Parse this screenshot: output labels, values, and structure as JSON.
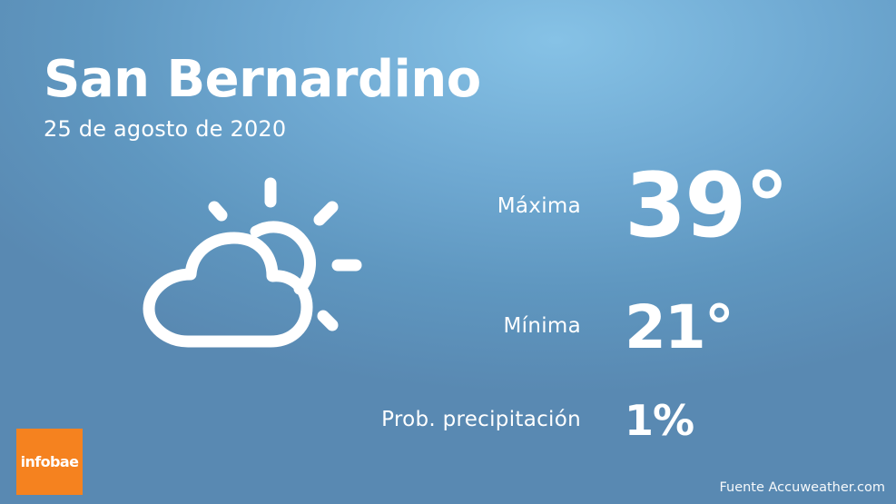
{
  "location": {
    "city": "San Bernardino",
    "date": "25 de agosto de 2020"
  },
  "forecast": {
    "icon": "partly-cloudy-day-icon",
    "max_label": "Máxima",
    "max_value": "39°",
    "min_label": "Mínima",
    "min_value": "21°",
    "precip_label": "Prob. precipitación",
    "precip_value": "1%"
  },
  "branding": {
    "logo_text": "infobae",
    "source": "Fuente Accuweather.com"
  },
  "colors": {
    "background": "#6fa9d2",
    "logo": "#f5821f",
    "text": "#ffffff"
  }
}
